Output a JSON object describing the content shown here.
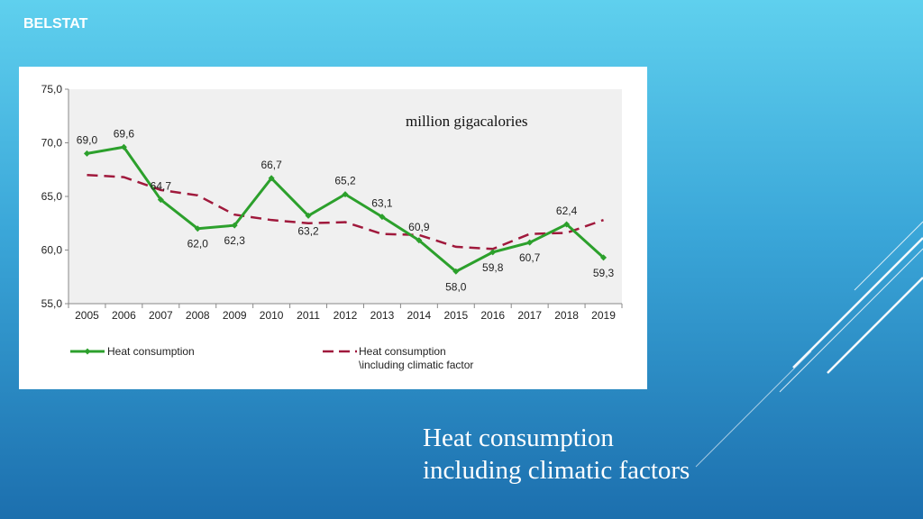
{
  "header": {
    "brand": "BELSTAT"
  },
  "slide": {
    "title_line1": "Heat consumption",
    "title_line2": "including climatic factors"
  },
  "chart_data": {
    "type": "line",
    "unit_label": "million gigacalories",
    "categories": [
      "2005",
      "2006",
      "2007",
      "2008",
      "2009",
      "2010",
      "2011",
      "2012",
      "2013",
      "2014",
      "2015",
      "2016",
      "2017",
      "2018",
      "2019"
    ],
    "ylim": [
      55,
      75
    ],
    "yticks": [
      "55,0",
      "60,0",
      "65,0",
      "70,0",
      "75,0"
    ],
    "ytick_values": [
      55,
      60,
      65,
      70,
      75
    ],
    "legend_position": "bottom",
    "series": [
      {
        "name": "Heat consumption",
        "color": "#2ca02c",
        "style": "solid-markers",
        "values": [
          69.0,
          69.6,
          64.7,
          62.0,
          62.3,
          66.7,
          63.2,
          65.2,
          63.1,
          60.9,
          58.0,
          59.8,
          60.7,
          62.4,
          59.3
        ],
        "labels": [
          "69,0",
          "69,6",
          "64,7",
          "62,0",
          "62,3",
          "66,7",
          "63,2",
          "65,2",
          "63,1",
          "60,9",
          "58,0",
          "59,8",
          "60,7",
          "62,4",
          "59,3"
        ]
      },
      {
        "name_line1": "Heat consumption",
        "name_line2": "\\including climatic factor",
        "color": "#a0193c",
        "style": "dashed",
        "values": [
          67.0,
          66.8,
          65.6,
          65.1,
          63.3,
          62.8,
          62.5,
          62.6,
          61.5,
          61.4,
          60.3,
          60.1,
          61.5,
          61.6,
          62.8
        ]
      }
    ]
  }
}
